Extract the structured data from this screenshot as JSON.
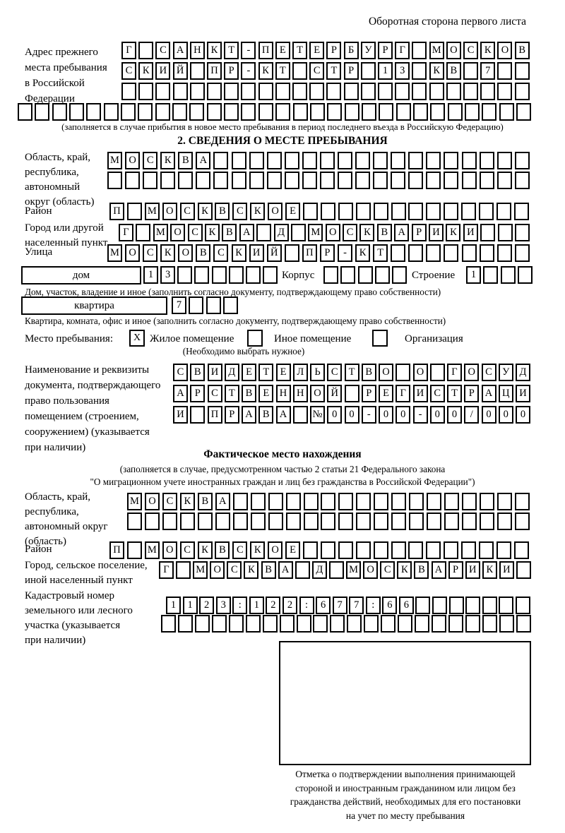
{
  "header": {
    "note": "Оборотная сторона первого листа"
  },
  "prev_address": {
    "label": "Адрес прежнего\nместа пребывания\nв Российской\nФедерации",
    "row1": {
      "len": 24,
      "text": "Г САНКТ-ПЕТЕРБУРГ МОСКОВ"
    },
    "row2": {
      "len": 24,
      "text": "СКИЙ ПР-КТ СТР 13 КВ 7"
    },
    "row3": {
      "len": 24,
      "text": ""
    },
    "row4": {
      "len": 30,
      "text": ""
    },
    "note": "(заполняется в случае прибытия в новое место пребывания в период последнего въезда в Российскую Федерацию)"
  },
  "section2": {
    "title": "2. СВЕДЕНИЯ О МЕСТЕ ПРЕБЫВАНИЯ",
    "region": {
      "label": "Область, край,\nреспублика,\nавтономный\nокруг (область)",
      "row1": {
        "len": 24,
        "text": "МОСКВА"
      },
      "row2": {
        "len": 24,
        "text": ""
      }
    },
    "district": {
      "label": "Район",
      "row": {
        "len": 24,
        "text": "П МОСКВСКОЕ"
      }
    },
    "city": {
      "label": "Город или другой\nнаселенный пункт",
      "row": {
        "len": 24,
        "text": "Г МОСКВА Д МОСКВАРИКИ"
      }
    },
    "street": {
      "label": "Улица",
      "row": {
        "len": 24,
        "text": "МОСКОВСКИЙ ПР-КТ"
      }
    },
    "house": {
      "box_label": "дом",
      "cells": {
        "len": 8,
        "text": "13"
      },
      "korpus_label": "Корпус",
      "korpus_cells": {
        "len": 5,
        "text": ""
      },
      "stroenie_label": "Строение",
      "stroenie_cells": {
        "len": 4,
        "text": "1"
      },
      "note": "Дом, участок, владение и иное (заполнить согласно документу, подтверждающему право собственности)"
    },
    "apartment": {
      "box_label": "квартира",
      "cells": {
        "len": 4,
        "text": "7"
      },
      "note": "Квартира, комната, офис и иное (заполнить согласно документу, подтверждающему право собственности)"
    },
    "stay_type": {
      "label": "Место пребывания:",
      "options": [
        {
          "label": "Жилое помещение",
          "mark": "X"
        },
        {
          "label": "Иное помещение",
          "mark": ""
        },
        {
          "label": "Организация",
          "mark": ""
        }
      ],
      "note": "(Необходимо выбрать нужное)"
    },
    "document": {
      "label": "Наименование и реквизиты\nдокумента, подтверждающего\nправо пользования\nпомещением (строением,\nсооружением) (указывается\nпри наличии)",
      "row1": {
        "len": 21,
        "text": "СВИДЕТЕЛЬСТВО О ГОСУД"
      },
      "row2": {
        "len": 21,
        "text": "АРСТВЕННОЙ РЕГИСТРАЦИ"
      },
      "row3": {
        "len": 21,
        "text": "И ПРАВА №00-00-00/000"
      }
    }
  },
  "actual_location": {
    "title": "Фактическое место нахождения",
    "note1": "(заполняется в случае, предусмотренном частью 2 статьи 21 Федерального закона",
    "note2": "\"О миграционном учете иностранных граждан и лиц без гражданства в Российской Федерации\")",
    "region": {
      "label": "Область, край,\nреспублика,\nавтономный округ\n(область)",
      "row1": {
        "len": 23,
        "text": "МОСКВА"
      },
      "row2": {
        "len": 23,
        "text": ""
      }
    },
    "district": {
      "label": "Район",
      "row": {
        "len": 24,
        "text": "П МОСКВСКОЕ"
      }
    },
    "city": {
      "label": "Город, сельское поселение,\nиной населенный пункт",
      "row": {
        "len": 22,
        "text": "Г МОСКВА Д МОСКВАРИКИ"
      }
    },
    "cadastre": {
      "label": "Кадастровый номер\nземельного или лесного\nучастка (указывается\nпри наличии)",
      "row1": {
        "len": 22,
        "text": "1123:122:677:66"
      },
      "row2": {
        "len": 22,
        "text": ""
      }
    },
    "stamp_note": "Отметка о подтверждении выполнения принимающей\nстороной и иностранным гражданином или лицом без\nгражданства действий, необходимых для его постановки\nна учет по месту пребывания"
  }
}
